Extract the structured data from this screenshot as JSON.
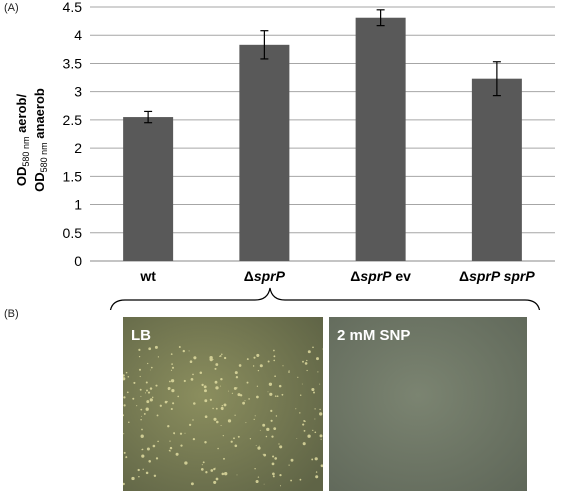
{
  "panels": {
    "a_label": "(A)",
    "b_label": "(B)"
  },
  "chart_data": {
    "type": "bar",
    "categories": [
      "wt",
      "ΔsprP",
      "ΔsprP ev",
      "ΔsprP sprP"
    ],
    "category_parts": [
      [
        {
          "t": "wt",
          "i": false
        }
      ],
      [
        {
          "t": "Δ",
          "i": false
        },
        {
          "t": "sprP",
          "i": true
        }
      ],
      [
        {
          "t": "Δ",
          "i": false
        },
        {
          "t": "sprP",
          "i": true
        },
        {
          "t": " ev",
          "i": false
        }
      ],
      [
        {
          "t": "Δ",
          "i": false
        },
        {
          "t": "sprP sprP",
          "i": true
        }
      ]
    ],
    "values": [
      2.55,
      3.83,
      4.31,
      3.23
    ],
    "error_low": [
      2.45,
      3.58,
      4.17,
      2.93
    ],
    "error_high": [
      2.65,
      4.08,
      4.45,
      3.53
    ],
    "ylabel": "OD580 nm aerob/ OD580 nm anaerob",
    "ylabel_line1": {
      "pre": "OD",
      "sub": "580 nm",
      "post": " aerob/"
    },
    "ylabel_line2": {
      "pre": "OD",
      "sub": "580 nm",
      "post": " anaerob"
    },
    "ylim": [
      0,
      4.5
    ],
    "yticks": [
      "0",
      "0.5",
      "1",
      "1.5",
      "2",
      "2.5",
      "3",
      "3.5",
      "4",
      "4.5"
    ],
    "grid": true,
    "bar_color": "#595959",
    "grid_color": "#a6a6a6"
  },
  "photos": [
    {
      "label": "LB",
      "description_colors": {
        "base": "#7f8456",
        "speck": "#d9d59a"
      }
    },
    {
      "label": "2 mM SNP",
      "description_colors": {
        "base": "#727c6a"
      }
    }
  ]
}
